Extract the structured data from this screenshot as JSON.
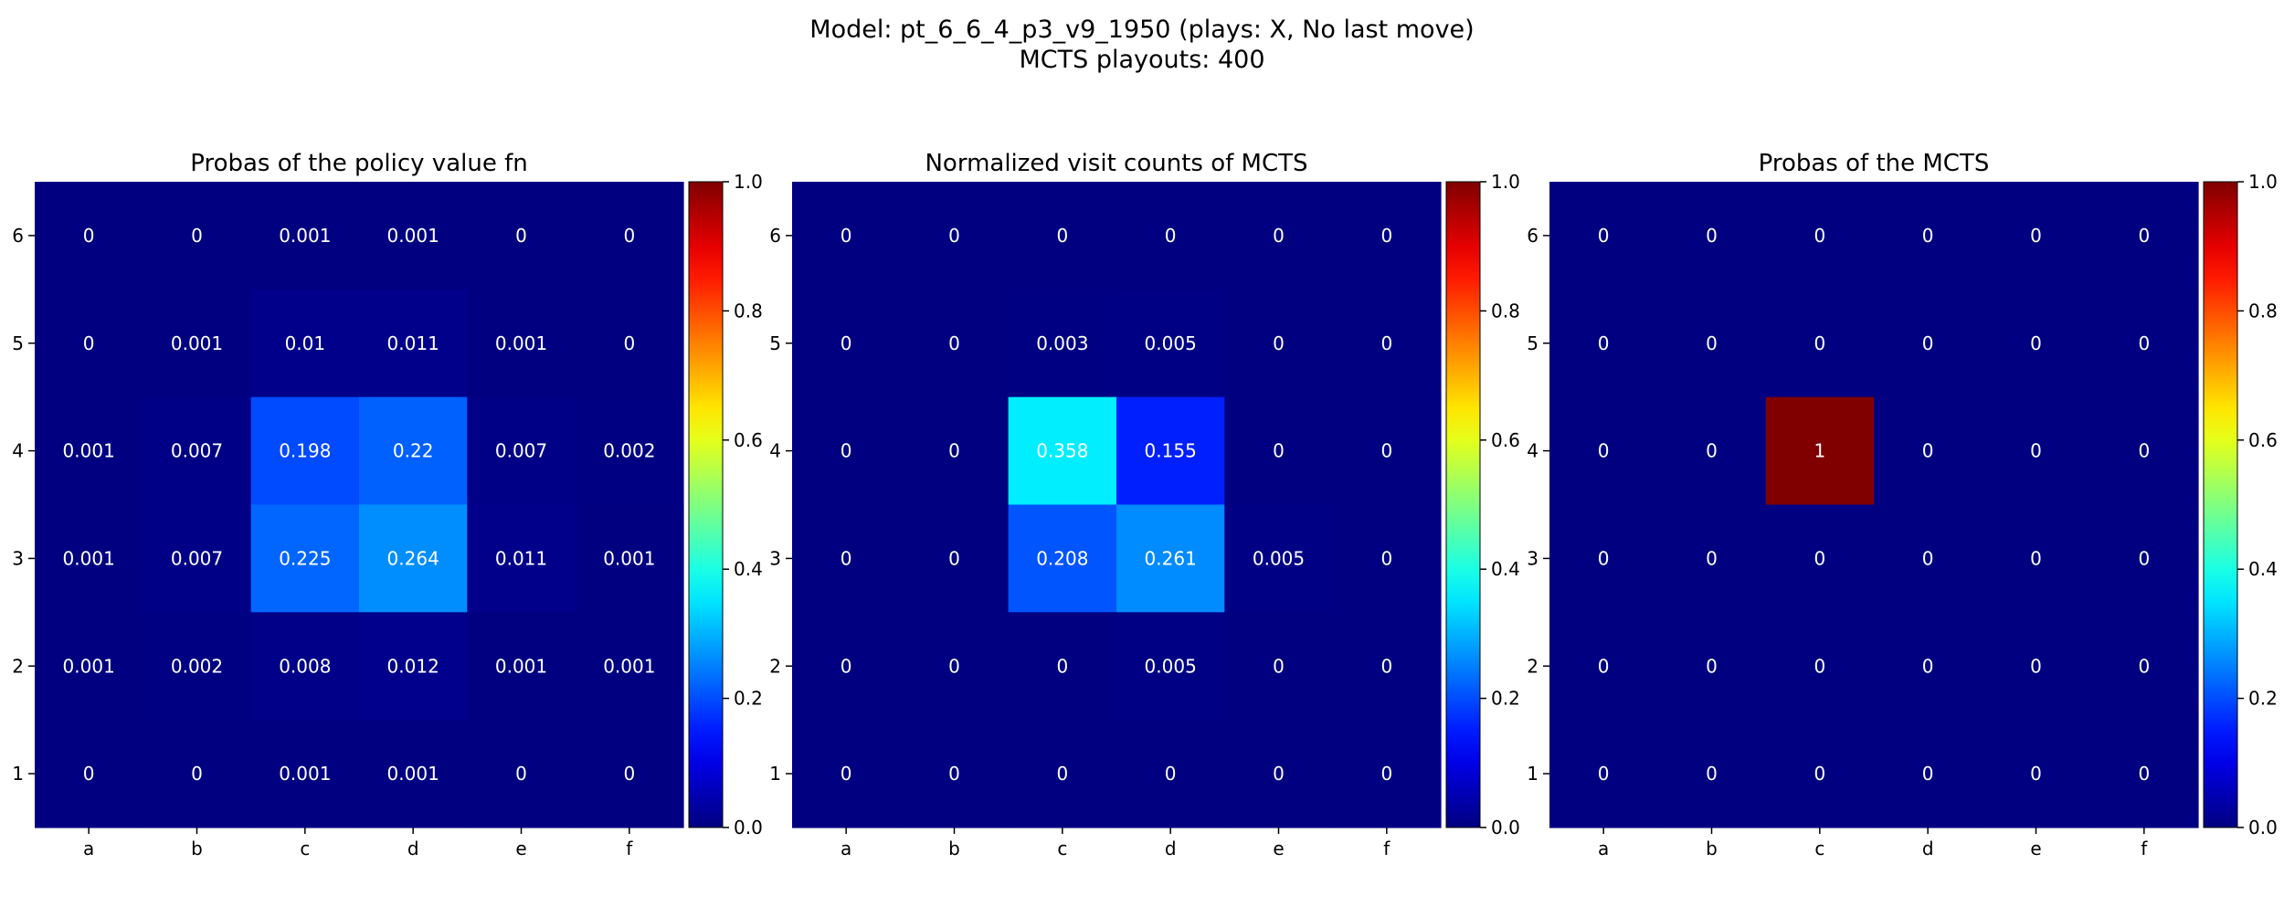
{
  "figure": {
    "title_line1": "Model: pt_6_6_4_p3_v9_1950 (plays: X, No last move)",
    "title_line2": "MCTS playouts: 400"
  },
  "colormap": "jet",
  "chart_data": [
    {
      "type": "heatmap",
      "title": "Probas of the policy value fn",
      "x_tick_labels": [
        "a",
        "b",
        "c",
        "d",
        "e",
        "f"
      ],
      "y_tick_labels": [
        "6",
        "5",
        "4",
        "3",
        "2",
        "1"
      ],
      "values": [
        [
          0.0,
          0.0,
          0.001,
          0.001,
          0.0,
          0.0
        ],
        [
          0.0,
          0.001,
          0.01,
          0.011,
          0.001,
          0.0
        ],
        [
          0.001,
          0.007,
          0.198,
          0.22,
          0.007,
          0.002
        ],
        [
          0.001,
          0.007,
          0.225,
          0.264,
          0.011,
          0.001
        ],
        [
          0.001,
          0.002,
          0.008,
          0.012,
          0.001,
          0.001
        ],
        [
          0.0,
          0.0,
          0.001,
          0.001,
          0.0,
          0.0
        ]
      ],
      "colorbar_range": [
        0.0,
        1.0
      ],
      "colorbar_ticks": [
        "0.0",
        "0.2",
        "0.4",
        "0.6",
        "0.8",
        "1.0"
      ]
    },
    {
      "type": "heatmap",
      "title": "Normalized visit counts of MCTS",
      "x_tick_labels": [
        "a",
        "b",
        "c",
        "d",
        "e",
        "f"
      ],
      "y_tick_labels": [
        "6",
        "5",
        "4",
        "3",
        "2",
        "1"
      ],
      "values": [
        [
          0.0,
          0.0,
          0.0,
          0.0,
          0.0,
          0.0
        ],
        [
          0.0,
          0.0,
          0.003,
          0.005,
          0.0,
          0.0
        ],
        [
          0.0,
          0.0,
          0.358,
          0.155,
          0.0,
          0.0
        ],
        [
          0.0,
          0.0,
          0.208,
          0.261,
          0.005,
          0.0
        ],
        [
          0.0,
          0.0,
          0.0,
          0.005,
          0.0,
          0.0
        ],
        [
          0.0,
          0.0,
          0.0,
          0.0,
          0.0,
          0.0
        ]
      ],
      "colorbar_range": [
        0.0,
        1.0
      ],
      "colorbar_ticks": [
        "0.0",
        "0.2",
        "0.4",
        "0.6",
        "0.8",
        "1.0"
      ]
    },
    {
      "type": "heatmap",
      "title": "Probas of the MCTS",
      "x_tick_labels": [
        "a",
        "b",
        "c",
        "d",
        "e",
        "f"
      ],
      "y_tick_labels": [
        "6",
        "5",
        "4",
        "3",
        "2",
        "1"
      ],
      "values": [
        [
          0.0,
          0.0,
          0.0,
          0.0,
          0.0,
          0.0
        ],
        [
          0.0,
          0.0,
          0.0,
          0.0,
          0.0,
          0.0
        ],
        [
          0.0,
          0.0,
          1.0,
          0.0,
          0.0,
          0.0
        ],
        [
          0.0,
          0.0,
          0.0,
          0.0,
          0.0,
          0.0
        ],
        [
          0.0,
          0.0,
          0.0,
          0.0,
          0.0,
          0.0
        ],
        [
          0.0,
          0.0,
          0.0,
          0.0,
          0.0,
          0.0
        ]
      ],
      "colorbar_range": [
        0.0,
        1.0
      ],
      "colorbar_ticks": [
        "0.0",
        "0.2",
        "0.4",
        "0.6",
        "0.8",
        "1.0"
      ]
    }
  ]
}
